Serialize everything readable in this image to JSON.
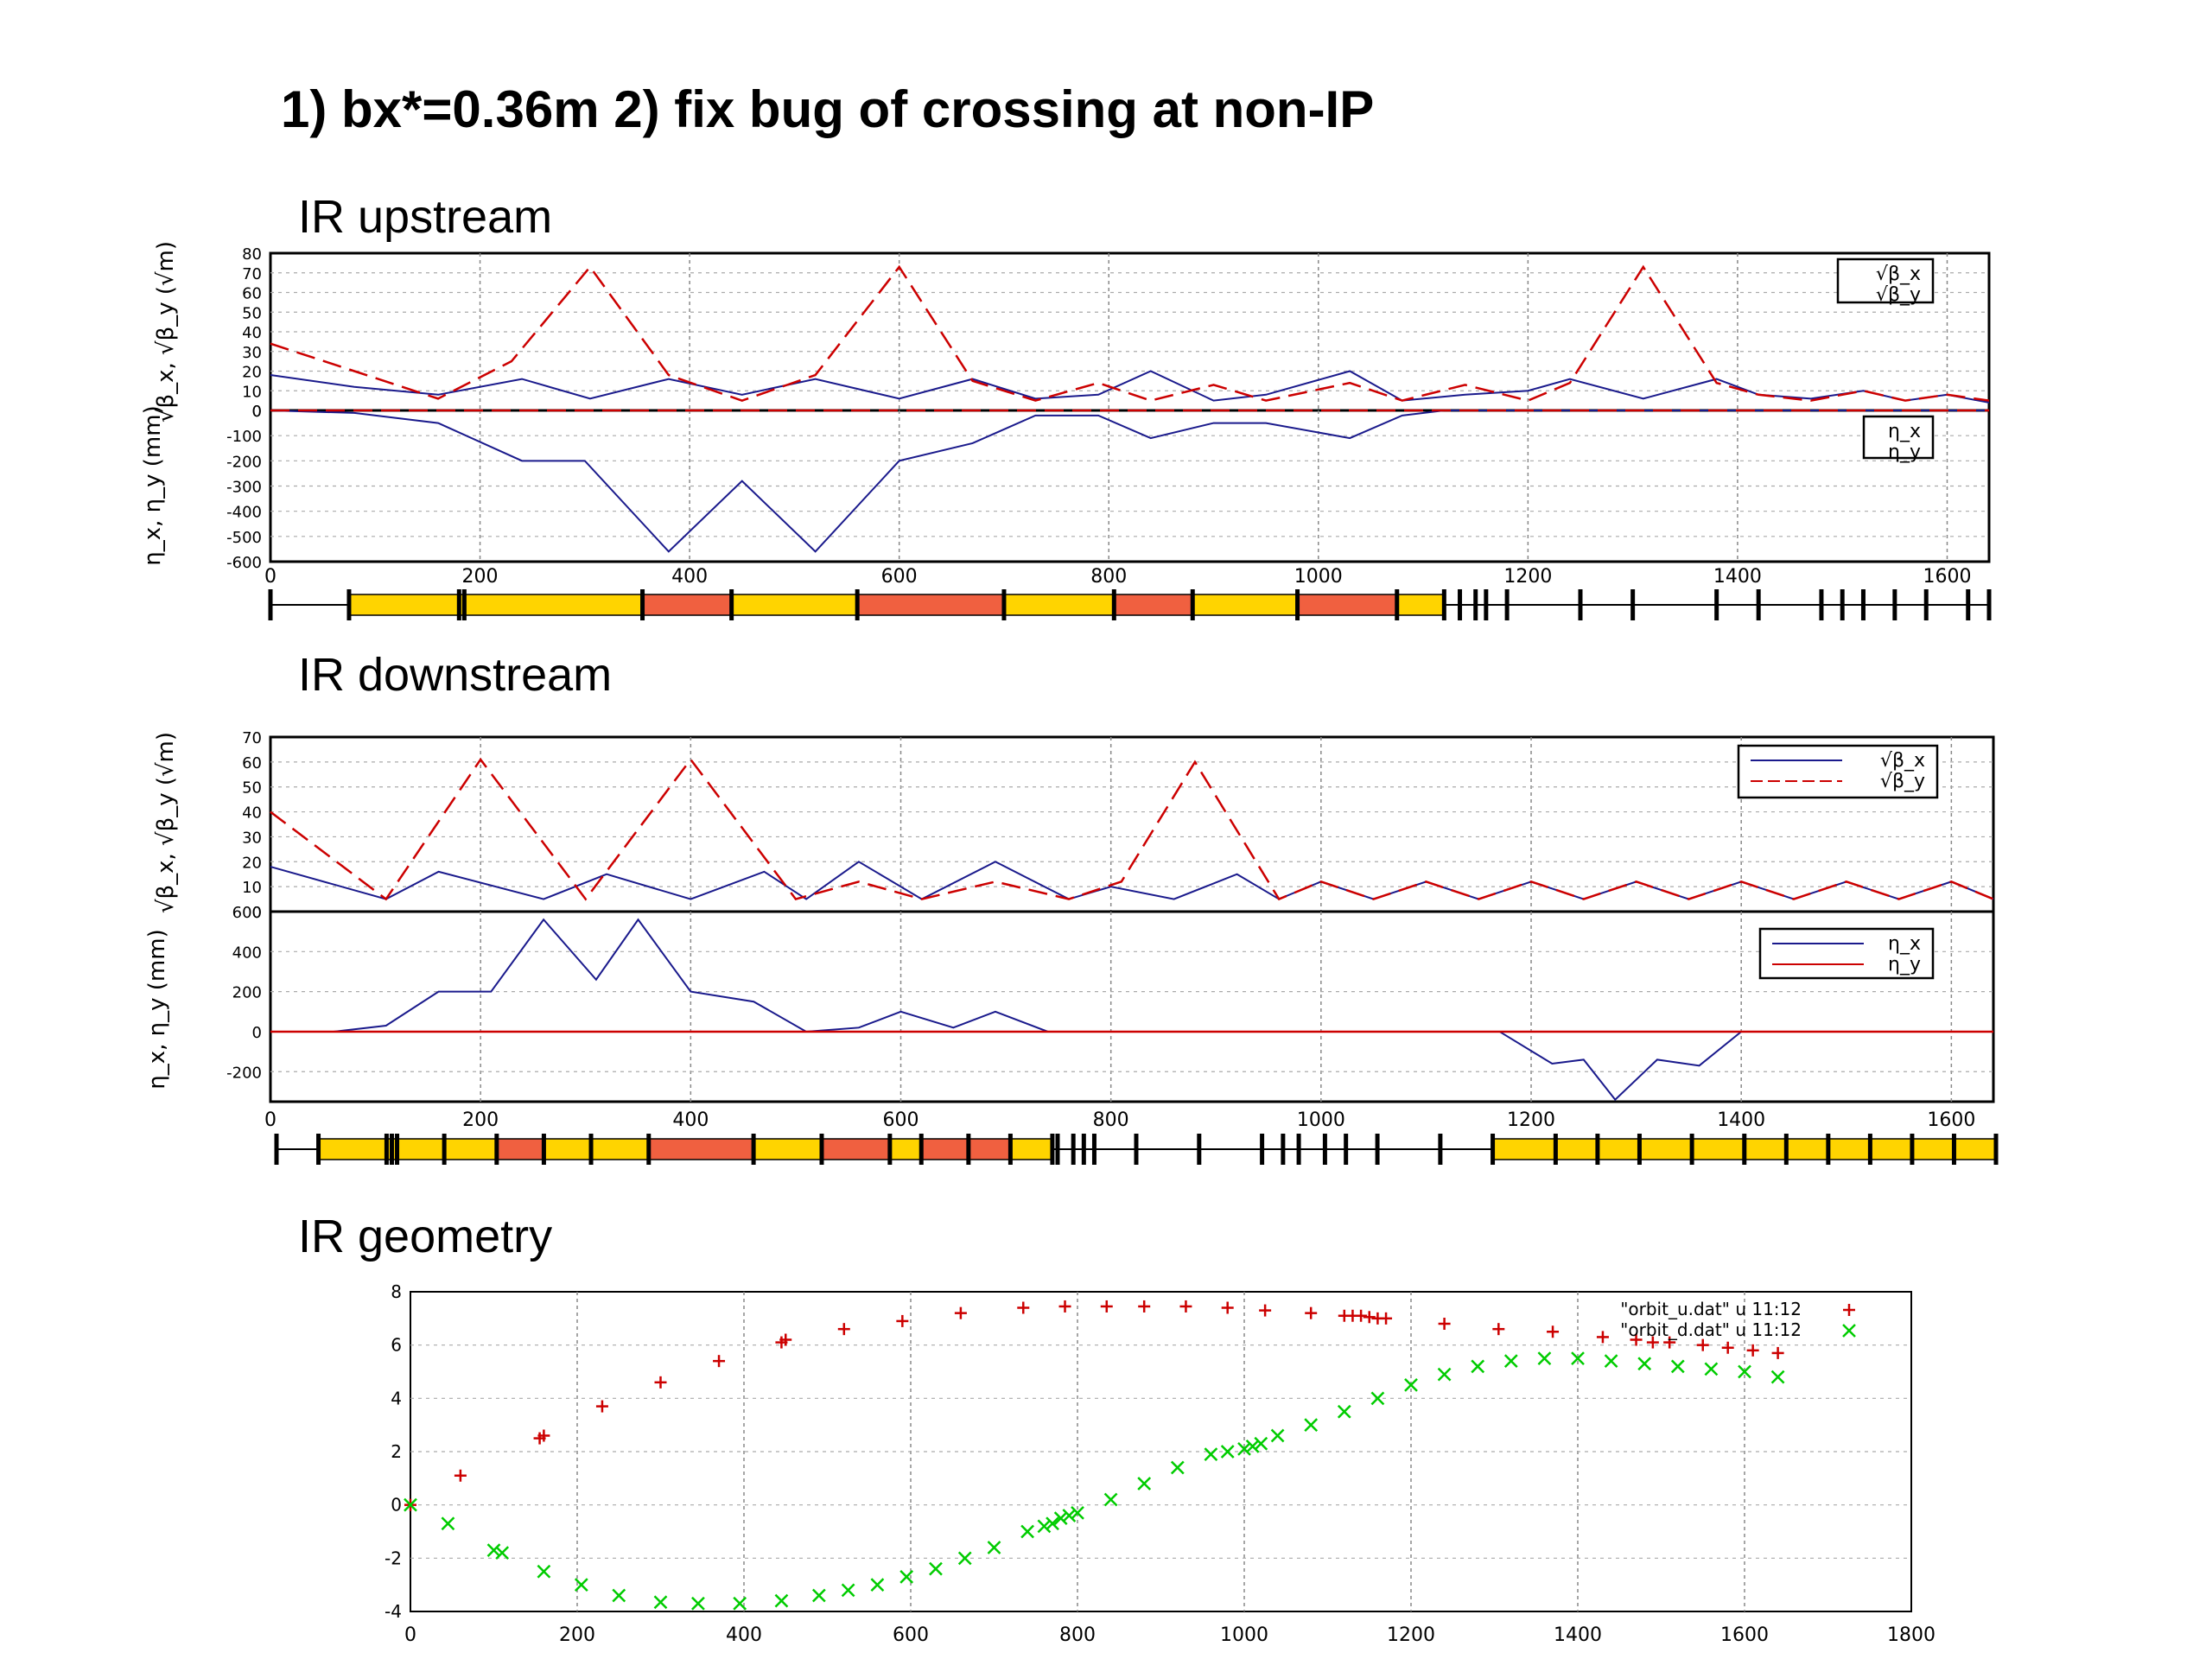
{
  "title": "1) bx*=0.36m  2) fix bug of crossing at non-IP",
  "sections": {
    "upstream": "IR upstream",
    "downstream": "IR downstream",
    "geometry": "IR geometry"
  },
  "colors": {
    "red": "#cc0000",
    "blue": "#1a1a8c",
    "green": "#00cc00",
    "magnet_yellow": "#ffd400",
    "magnet_red": "#f06040"
  },
  "chart_data": [
    {
      "name": "upstream-beta",
      "type": "line",
      "ylabel": "√β_x, √β_y (√m)",
      "legend": [
        "√β_x",
        "√β_y"
      ],
      "legend_position": "top-right",
      "xlim": [
        0,
        1640
      ],
      "ylim": [
        0,
        80
      ],
      "yticks": [
        0,
        10,
        20,
        30,
        40,
        50,
        60,
        70,
        80
      ],
      "grid": true,
      "series": [
        {
          "name": "√β_x",
          "color": "blue",
          "dash": false,
          "x": [
            0,
            80,
            160,
            240,
            305,
            380,
            450,
            520,
            600,
            670,
            730,
            790,
            840,
            900,
            950,
            1030,
            1080,
            1140,
            1200,
            1240,
            1310,
            1380,
            1420,
            1470,
            1520,
            1560,
            1600,
            1640
          ],
          "y": [
            18,
            12,
            8,
            16,
            6,
            16,
            8,
            16,
            6,
            16,
            6,
            8,
            20,
            5,
            8,
            20,
            5,
            8,
            10,
            16,
            6,
            16,
            8,
            6,
            10,
            5,
            8,
            4
          ]
        },
        {
          "name": "√β_y",
          "color": "red",
          "dash": true,
          "x": [
            0,
            80,
            160,
            230,
            305,
            380,
            450,
            520,
            600,
            670,
            730,
            790,
            840,
            900,
            950,
            1030,
            1080,
            1140,
            1200,
            1240,
            1310,
            1380,
            1420,
            1470,
            1520,
            1560,
            1600,
            1640
          ],
          "y": [
            34,
            20,
            6,
            25,
            73,
            18,
            5,
            18,
            73,
            15,
            5,
            14,
            5,
            13,
            5,
            14,
            5,
            13,
            5,
            14,
            73,
            14,
            8,
            5,
            10,
            5,
            8,
            5
          ]
        }
      ]
    },
    {
      "name": "upstream-eta",
      "type": "line",
      "ylabel": "η_x, η_y (mm)",
      "legend": [
        "η_x",
        "η_y"
      ],
      "legend_position": "top-right",
      "xlim": [
        0,
        1640
      ],
      "ylim": [
        -600,
        0
      ],
      "xticks": [
        0,
        200,
        400,
        600,
        800,
        1000,
        1200,
        1400,
        1600
      ],
      "yticks": [
        -600,
        -500,
        -400,
        -300,
        -200,
        -100,
        0
      ],
      "grid": true,
      "series": [
        {
          "name": "η_x",
          "color": "blue",
          "dash": false,
          "x": [
            0,
            80,
            160,
            240,
            300,
            380,
            450,
            520,
            600,
            670,
            730,
            790,
            840,
            900,
            950,
            1030,
            1080,
            1120,
            1640
          ],
          "y": [
            0,
            -10,
            -50,
            -200,
            -200,
            -560,
            -280,
            -560,
            -200,
            -130,
            -20,
            -20,
            -110,
            -50,
            -50,
            -110,
            -20,
            0,
            0
          ]
        },
        {
          "name": "η_y",
          "color": "red",
          "dash": true,
          "x": [
            0,
            1640
          ],
          "y": [
            0,
            0
          ]
        }
      ]
    },
    {
      "name": "downstream-beta",
      "type": "line",
      "ylabel": "√β_x, √β_y (√m)",
      "legend": [
        "√β_x",
        "√β_y"
      ],
      "legend_position": "top-right",
      "xlim": [
        0,
        1640
      ],
      "ylim": [
        0,
        70
      ],
      "yticks": [
        0,
        10,
        20,
        30,
        40,
        50,
        60,
        70
      ],
      "grid": true,
      "series": [
        {
          "name": "√β_x",
          "color": "blue",
          "dash": false,
          "x": [
            0,
            110,
            160,
            260,
            320,
            400,
            470,
            510,
            560,
            620,
            690,
            760,
            800,
            860,
            920,
            960,
            1000,
            1050,
            1100,
            1150,
            1200,
            1250,
            1300,
            1350,
            1400,
            1450,
            1500,
            1550,
            1600,
            1640
          ],
          "y": [
            18,
            5,
            16,
            5,
            15,
            5,
            16,
            5,
            20,
            5,
            20,
            5,
            10,
            5,
            15,
            5,
            12,
            5,
            12,
            5,
            12,
            5,
            12,
            5,
            12,
            5,
            12,
            5,
            12,
            5
          ]
        },
        {
          "name": "√β_y",
          "color": "red",
          "dash": true,
          "x": [
            0,
            110,
            200,
            300,
            400,
            500,
            560,
            620,
            690,
            760,
            810,
            880,
            960,
            1000,
            1050,
            1100,
            1150,
            1200,
            1250,
            1300,
            1350,
            1400,
            1450,
            1500,
            1550,
            1600,
            1640
          ],
          "y": [
            40,
            5,
            61,
            5,
            61,
            5,
            12,
            5,
            12,
            5,
            12,
            60,
            5,
            12,
            5,
            12,
            5,
            12,
            5,
            12,
            5,
            12,
            5,
            12,
            5,
            12,
            5
          ]
        }
      ]
    },
    {
      "name": "downstream-eta",
      "type": "line",
      "ylabel": "η_x, η_y (mm)",
      "legend": [
        "η_x",
        "η_y"
      ],
      "legend_position": "top-right",
      "xlim": [
        0,
        1640
      ],
      "ylim": [
        -350,
        600
      ],
      "xticks": [
        0,
        200,
        400,
        600,
        800,
        1000,
        1200,
        1400,
        1600
      ],
      "yticks": [
        -200,
        0,
        200,
        400,
        600
      ],
      "grid": true,
      "series": [
        {
          "name": "η_x",
          "color": "blue",
          "dash": false,
          "x": [
            0,
            60,
            110,
            160,
            210,
            260,
            310,
            350,
            400,
            460,
            510,
            560,
            600,
            650,
            690,
            740,
            1000,
            1170,
            1220,
            1250,
            1280,
            1320,
            1360,
            1400,
            1640
          ],
          "y": [
            0,
            0,
            30,
            200,
            200,
            560,
            260,
            560,
            200,
            150,
            0,
            20,
            100,
            20,
            100,
            0,
            0,
            0,
            -160,
            -140,
            -340,
            -140,
            -170,
            0,
            0
          ]
        },
        {
          "name": "η_y",
          "color": "red",
          "dash": false,
          "x": [
            0,
            1640
          ],
          "y": [
            0,
            0
          ]
        }
      ]
    },
    {
      "name": "geometry",
      "type": "scatter",
      "legend": [
        "\"orbit_u.dat\" u 11:12",
        "\"orbit_d.dat\" u 11:12"
      ],
      "legend_position": "top-right",
      "xlim": [
        0,
        1800
      ],
      "ylim": [
        -4,
        8
      ],
      "xticks": [
        0,
        200,
        400,
        600,
        800,
        1000,
        1200,
        1400,
        1600,
        1800
      ],
      "yticks": [
        -4,
        -2,
        0,
        2,
        4,
        6,
        8
      ],
      "series": [
        {
          "name": "\"orbit_u.dat\" u 11:12",
          "color": "red",
          "marker": "+",
          "x": [
            0,
            60,
            155,
            160,
            230,
            300,
            370,
            445,
            450,
            520,
            590,
            660,
            735,
            785,
            835,
            880,
            930,
            980,
            1025,
            1080,
            1120,
            1130,
            1140,
            1150,
            1160,
            1170,
            1240,
            1305,
            1370,
            1430,
            1470,
            1490,
            1510,
            1550,
            1580,
            1610,
            1640
          ],
          "y": [
            0,
            1.1,
            2.5,
            2.6,
            3.7,
            4.6,
            5.4,
            6.1,
            6.2,
            6.6,
            6.9,
            7.2,
            7.4,
            7.45,
            7.45,
            7.45,
            7.45,
            7.4,
            7.3,
            7.2,
            7.1,
            7.1,
            7.1,
            7.05,
            7.0,
            7.0,
            6.8,
            6.6,
            6.5,
            6.3,
            6.2,
            6.1,
            6.1,
            6.0,
            5.9,
            5.8,
            5.7
          ]
        },
        {
          "name": "\"orbit_d.dat\" u 11:12",
          "color": "green",
          "marker": "x",
          "x": [
            0,
            45,
            100,
            110,
            160,
            205,
            250,
            300,
            345,
            395,
            445,
            490,
            525,
            560,
            595,
            630,
            665,
            700,
            740,
            760,
            770,
            780,
            790,
            800,
            840,
            880,
            920,
            960,
            980,
            1000,
            1010,
            1020,
            1040,
            1080,
            1120,
            1160,
            1200,
            1240,
            1280,
            1320,
            1360,
            1400,
            1440,
            1480,
            1520,
            1560,
            1600,
            1640
          ],
          "y": [
            0,
            -0.7,
            -1.7,
            -1.8,
            -2.5,
            -3.0,
            -3.4,
            -3.65,
            -3.7,
            -3.7,
            -3.6,
            -3.4,
            -3.2,
            -3.0,
            -2.7,
            -2.4,
            -2.0,
            -1.6,
            -1.0,
            -0.8,
            -0.7,
            -0.5,
            -0.4,
            -0.3,
            0.2,
            0.8,
            1.4,
            1.9,
            2.0,
            2.1,
            2.2,
            2.3,
            2.6,
            3.0,
            3.5,
            4.0,
            4.5,
            4.9,
            5.2,
            5.4,
            5.5,
            5.5,
            5.4,
            5.3,
            5.2,
            5.1,
            5.0,
            4.8
          ]
        }
      ]
    }
  ],
  "lattice": {
    "upstream": {
      "magnets": [
        {
          "s0": 75,
          "s1": 180,
          "color": "yellow"
        },
        {
          "s0": 180,
          "s1": 355,
          "color": "yellow"
        },
        {
          "s0": 355,
          "s1": 440,
          "color": "red"
        },
        {
          "s0": 440,
          "s1": 560,
          "color": "yellow"
        },
        {
          "s0": 560,
          "s1": 700,
          "color": "red"
        },
        {
          "s0": 700,
          "s1": 805,
          "color": "yellow"
        },
        {
          "s0": 805,
          "s1": 880,
          "color": "red"
        },
        {
          "s0": 880,
          "s1": 980,
          "color": "yellow"
        },
        {
          "s0": 980,
          "s1": 1075,
          "color": "red"
        },
        {
          "s0": 1075,
          "s1": 1120,
          "color": "yellow"
        }
      ],
      "ticks": [
        0,
        75,
        180,
        185,
        355,
        440,
        560,
        700,
        805,
        880,
        980,
        1075,
        1120,
        1135,
        1150,
        1160,
        1180,
        1250,
        1300,
        1380,
        1420,
        1480,
        1500,
        1520,
        1550,
        1580,
        1620,
        1640
      ]
    },
    "downstream": {
      "magnets": [
        {
          "s0": 40,
          "s1": 105,
          "color": "yellow"
        },
        {
          "s0": 105,
          "s1": 210,
          "color": "yellow"
        },
        {
          "s0": 210,
          "s1": 255,
          "color": "red"
        },
        {
          "s0": 255,
          "s1": 355,
          "color": "yellow"
        },
        {
          "s0": 355,
          "s1": 455,
          "color": "red"
        },
        {
          "s0": 455,
          "s1": 520,
          "color": "yellow"
        },
        {
          "s0": 520,
          "s1": 585,
          "color": "red"
        },
        {
          "s0": 585,
          "s1": 615,
          "color": "yellow"
        },
        {
          "s0": 615,
          "s1": 700,
          "color": "red"
        },
        {
          "s0": 700,
          "s1": 740,
          "color": "yellow"
        },
        {
          "s0": 1160,
          "s1": 1400,
          "color": "yellow"
        },
        {
          "s0": 1400,
          "s1": 1640,
          "color": "yellow"
        }
      ],
      "ticks": [
        0,
        40,
        105,
        110,
        115,
        160,
        210,
        255,
        300,
        355,
        455,
        520,
        585,
        615,
        660,
        700,
        740,
        745,
        760,
        770,
        780,
        820,
        880,
        940,
        960,
        975,
        1000,
        1020,
        1050,
        1110,
        1160,
        1220,
        1260,
        1300,
        1350,
        1400,
        1440,
        1480,
        1520,
        1560,
        1600,
        1640
      ]
    }
  }
}
